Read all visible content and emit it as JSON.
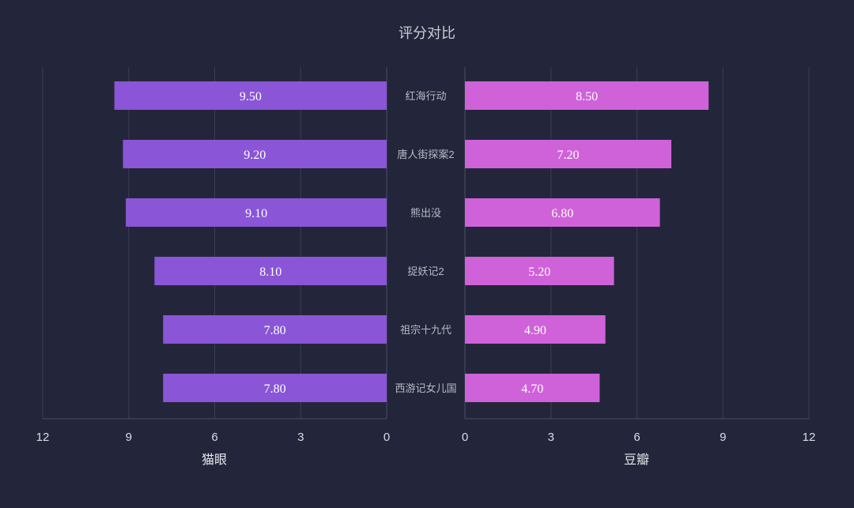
{
  "chart_data": {
    "type": "bar",
    "title": "评分对比",
    "categories": [
      "红海行动",
      "唐人街探案2",
      "熊出没",
      "捉妖记2",
      "祖宗十九代",
      "西游记女儿国"
    ],
    "series": [
      {
        "name": "猫眼",
        "values": [
          9.5,
          9.2,
          9.1,
          8.1,
          7.8,
          7.8
        ],
        "labels": [
          "9.50",
          "9.20",
          "9.10",
          "8.10",
          "7.80",
          "7.80"
        ],
        "color": "#8a55d6"
      },
      {
        "name": "豆瓣",
        "values": [
          8.5,
          7.2,
          6.8,
          5.2,
          4.9,
          4.7
        ],
        "labels": [
          "8.50",
          "7.20",
          "6.80",
          "5.20",
          "4.90",
          "4.70"
        ],
        "color": "#cf62d9"
      }
    ],
    "left_axis": {
      "label": "猫眼",
      "ticks": [
        "12",
        "9",
        "6",
        "3",
        "0"
      ],
      "tick_values": [
        12,
        9,
        6,
        3,
        0
      ],
      "xlim": [
        0,
        12
      ]
    },
    "right_axis": {
      "label": "豆瓣",
      "ticks": [
        "0",
        "3",
        "6",
        "9",
        "12"
      ],
      "tick_values": [
        0,
        3,
        6,
        9,
        12
      ],
      "xlim": [
        0,
        12
      ]
    },
    "grid": true,
    "background": "#23263a"
  }
}
